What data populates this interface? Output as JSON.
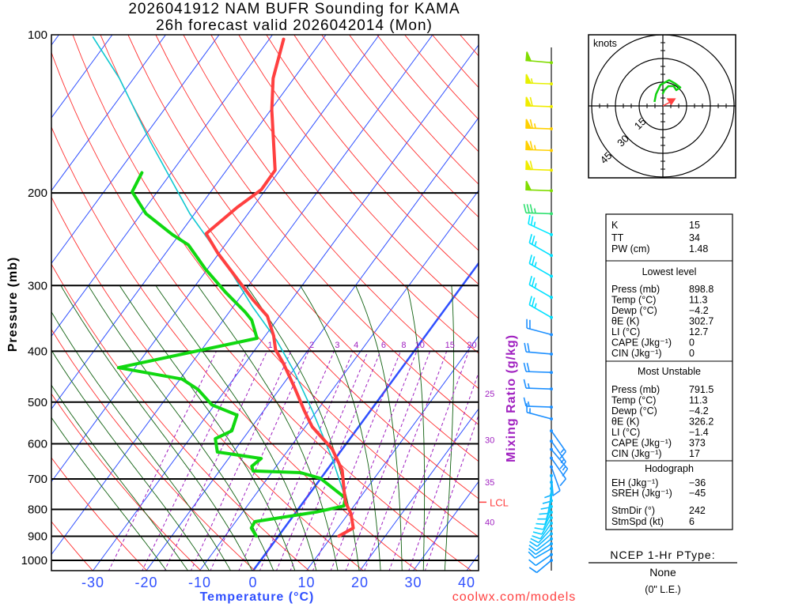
{
  "title": {
    "line1": "2026041912 NAM BUFR Sounding for KAMA",
    "line2": "26h forecast valid 2026042014 (Mon)"
  },
  "credit": "coolwx.com/models",
  "colors": {
    "temperature": "#ff4040",
    "dewpoint": "#10d810",
    "parcel": "#10c8d0",
    "isotherm": "#3050ff",
    "dry_adiabat": "#ff3030",
    "moist_adiabat": "#106010",
    "mixing_ratio": "#a020c0"
  },
  "chart_data": {
    "type": "line",
    "subtype": "skew-t log-p",
    "title": "2026041912 NAM BUFR Sounding for KAMA",
    "xlabel": "Temperature (°C)",
    "ylabel": "Pressure (mb)",
    "right_label": "Mixing Ratio (g/kg)",
    "ylim": [
      1050,
      100
    ],
    "xlim_at_surface": [
      -38,
      42
    ],
    "pressure_ticks": [
      "100",
      "200",
      "300",
      "400",
      "500",
      "600",
      "700",
      "800",
      "900",
      "1000"
    ],
    "pressure_tick_values": [
      100,
      200,
      300,
      400,
      500,
      600,
      700,
      800,
      900,
      1000
    ],
    "temp_ticks": [
      "-30",
      "-20",
      "-10",
      "0",
      "10",
      "20",
      "30",
      "40"
    ],
    "temp_tick_values": [
      -30,
      -20,
      -10,
      0,
      10,
      20,
      30,
      40
    ],
    "mixing_ratio_labels": [
      "1",
      "2",
      "3",
      "4",
      "6",
      "8",
      "10",
      "15",
      "20"
    ],
    "mixing_ratio_values": [
      1,
      2,
      3,
      4,
      6,
      8,
      10,
      15,
      20
    ],
    "moist_adiabat_labels": [
      {
        "text": "25",
        "p": 482
      },
      {
        "text": "30",
        "p": 590
      },
      {
        "text": "35",
        "p": 710
      },
      {
        "text": "40",
        "p": 846
      }
    ],
    "lcl": {
      "label": "LCL",
      "p": 775
    },
    "series": [
      {
        "name": "Temperature",
        "points": [
          [
            898.8,
            11.3
          ],
          [
            868,
            12.9
          ],
          [
            815,
            10.5
          ],
          [
            777,
            8.0
          ],
          [
            740,
            6.2
          ],
          [
            674,
            2.9
          ],
          [
            614,
            -1.9
          ],
          [
            557,
            -8.7
          ],
          [
            520,
            -12.3
          ],
          [
            468,
            -17.5
          ],
          [
            422,
            -22.8
          ],
          [
            397,
            -26.2
          ],
          [
            374,
            -28.4
          ],
          [
            343,
            -32.3
          ],
          [
            320,
            -37.1
          ],
          [
            260,
            -50.3
          ],
          [
            239,
            -55.1
          ],
          [
            213,
            -52.9
          ],
          [
            197,
            -50.8
          ],
          [
            181,
            -50.9
          ],
          [
            139,
            -59.8
          ],
          [
            121,
            -63.9
          ],
          [
            102,
            -67.3
          ]
        ]
      },
      {
        "name": "Dewpoint",
        "points": [
          [
            898.8,
            -4.2
          ],
          [
            868,
            -6.2
          ],
          [
            844,
            -6.4
          ],
          [
            809,
            3.8
          ],
          [
            788,
            8.1
          ],
          [
            761,
            7.3
          ],
          [
            698,
            -0.1
          ],
          [
            681,
            -4.6
          ],
          [
            676,
            -13.7
          ],
          [
            662,
            -14.6
          ],
          [
            640,
            -13.9
          ],
          [
            622,
            -23.0
          ],
          [
            587,
            -25.2
          ],
          [
            567,
            -23.2
          ],
          [
            529,
            -24.4
          ],
          [
            506,
            -30.5
          ],
          [
            473,
            -35.2
          ],
          [
            452,
            -39.6
          ],
          [
            430,
            -53.1
          ],
          [
            378,
            -31.2
          ],
          [
            349,
            -34.7
          ],
          [
            337,
            -37.0
          ],
          [
            309,
            -43.4
          ],
          [
            279,
            -50.4
          ],
          [
            251,
            -56.9
          ],
          [
            240,
            -61.3
          ],
          [
            219,
            -69.1
          ],
          [
            199,
            -74.7
          ],
          [
            183,
            -75.5
          ]
        ]
      },
      {
        "name": "Parcel",
        "points": [
          [
            800,
            9.5
          ],
          [
            766,
            7.6
          ],
          [
            640,
            -0.6
          ],
          [
            520,
            -10.8
          ],
          [
            437,
            -19.7
          ],
          [
            381,
            -27.3
          ],
          [
            328,
            -36.6
          ],
          [
            279,
            -45.9
          ],
          [
            219,
            -60.9
          ],
          [
            160,
            -78.1
          ],
          [
            121,
            -92.7
          ],
          [
            101,
            -103.3
          ]
        ]
      }
    ],
    "wind_barbs": [
      {
        "p": 113,
        "dir": 275,
        "spd": 50,
        "color": "#80dc00"
      },
      {
        "p": 124,
        "dir": 272,
        "spd": 55,
        "color": "#e6f000"
      },
      {
        "p": 137,
        "dir": 272,
        "spd": 60,
        "color": "#f0ec00"
      },
      {
        "p": 151,
        "dir": 272,
        "spd": 65,
        "color": "#ffd000"
      },
      {
        "p": 166,
        "dir": 272,
        "spd": 65,
        "color": "#ffd000"
      },
      {
        "p": 181,
        "dir": 272,
        "spd": 60,
        "color": "#f0ec00"
      },
      {
        "p": 198,
        "dir": 272,
        "spd": 50,
        "color": "#80dc00"
      },
      {
        "p": 219,
        "dir": 272,
        "spd": 35,
        "color": "#30e070"
      },
      {
        "p": 240,
        "dir": 295,
        "spd": 25,
        "color": "#00e8ff"
      },
      {
        "p": 263,
        "dir": 300,
        "spd": 25,
        "color": "#00e0ff"
      },
      {
        "p": 288,
        "dir": 300,
        "spd": 25,
        "color": "#00e0ff"
      },
      {
        "p": 316,
        "dir": 300,
        "spd": 25,
        "color": "#00e0ff"
      },
      {
        "p": 345,
        "dir": 300,
        "spd": 25,
        "color": "#00e0ff"
      },
      {
        "p": 372,
        "dir": 285,
        "spd": 20,
        "color": "#1e90ff"
      },
      {
        "p": 405,
        "dir": 275,
        "spd": 20,
        "color": "#1e90ff"
      },
      {
        "p": 439,
        "dir": 272,
        "spd": 20,
        "color": "#1e90ff"
      },
      {
        "p": 472,
        "dir": 272,
        "spd": 15,
        "color": "#1e90ff"
      },
      {
        "p": 511,
        "dir": 272,
        "spd": 15,
        "color": "#1e90ff"
      },
      {
        "p": 538,
        "dir": 285,
        "spd": 15,
        "color": "#1e90ff"
      },
      {
        "p": 567,
        "dir": 145,
        "spd": 15,
        "color": "#1e90ff"
      },
      {
        "p": 593,
        "dir": 145,
        "spd": 15,
        "color": "#1e90ff"
      },
      {
        "p": 615,
        "dir": 140,
        "spd": 15,
        "color": "#1e90ff"
      },
      {
        "p": 639,
        "dir": 145,
        "spd": 10,
        "color": "#1e90ff"
      },
      {
        "p": 664,
        "dir": 160,
        "spd": 10,
        "color": "#1e90ff"
      },
      {
        "p": 690,
        "dir": 175,
        "spd": 10,
        "color": "#10b0ff"
      },
      {
        "p": 710,
        "dir": 180,
        "spd": 10,
        "color": "#10b8ff"
      },
      {
        "p": 730,
        "dir": 185,
        "spd": 10,
        "color": "#10c0ff"
      },
      {
        "p": 750,
        "dir": 190,
        "spd": 10,
        "color": "#10c8ff"
      },
      {
        "p": 770,
        "dir": 195,
        "spd": 10,
        "color": "#10c8ff"
      },
      {
        "p": 790,
        "dir": 200,
        "spd": 10,
        "color": "#10d0ff"
      },
      {
        "p": 810,
        "dir": 205,
        "spd": 10,
        "color": "#10d0ff"
      },
      {
        "p": 830,
        "dir": 210,
        "spd": 10,
        "color": "#10d0ff"
      },
      {
        "p": 850,
        "dir": 215,
        "spd": 10,
        "color": "#10c8ff"
      },
      {
        "p": 870,
        "dir": 222,
        "spd": 10,
        "color": "#10c0ff"
      },
      {
        "p": 890,
        "dir": 228,
        "spd": 10,
        "color": "#10b8ff"
      },
      {
        "p": 910,
        "dir": 232,
        "spd": 10,
        "color": "#10b0ff"
      },
      {
        "p": 930,
        "dir": 236,
        "spd": 10,
        "color": "#10a8ff"
      },
      {
        "p": 950,
        "dir": 240,
        "spd": 10,
        "color": "#10a0ff"
      },
      {
        "p": 975,
        "dir": 235,
        "spd": 10,
        "color": "#1098ff"
      },
      {
        "p": 1000,
        "dir": 230,
        "spd": 10,
        "color": "#1090ff"
      }
    ],
    "hodograph": {
      "units_label": "knots",
      "ring_labels": [
        "15",
        "30",
        "45"
      ],
      "ring_values": [
        15,
        30,
        45
      ],
      "uv": [
        [
          -5.3,
          2.5
        ],
        [
          -4.3,
          7.5
        ],
        [
          -1.5,
          13.3
        ],
        [
          4,
          16.3
        ],
        [
          7.7,
          14.2
        ],
        [
          11,
          11.7
        ],
        [
          8.5,
          10
        ],
        [
          6.8,
          12.5
        ],
        [
          3.5,
          12.5
        ],
        [
          1,
          10
        ],
        [
          -0.2,
          7.5
        ]
      ],
      "storm_motion_uv": [
        5.3,
        2.8
      ]
    }
  },
  "indices": {
    "top": [
      {
        "label": "K",
        "value": "15"
      },
      {
        "label": "TT",
        "value": "34"
      },
      {
        "label": "PW (cm)",
        "value": "1.48"
      }
    ],
    "lowest": {
      "heading": "Lowest level",
      "rows": [
        {
          "label": "Press (mb)",
          "value": "898.8"
        },
        {
          "label": "Temp (°C)",
          "value": "11.3"
        },
        {
          "label": "Dewp (°C)",
          "value": "−4.2"
        },
        {
          "label": "θE (K)",
          "value": "302.7"
        },
        {
          "label": "LI (°C)",
          "value": "12.7"
        },
        {
          "label": "CAPE (Jkg⁻¹)",
          "value": "0"
        },
        {
          "label": "CIN (Jkg⁻¹)",
          "value": "0"
        }
      ]
    },
    "most_unstable": {
      "heading": "Most Unstable",
      "rows": [
        {
          "label": "Press (mb)",
          "value": "791.5"
        },
        {
          "label": "Temp (°C)",
          "value": "11.3"
        },
        {
          "label": "Dewp (°C)",
          "value": "−4.2"
        },
        {
          "label": "θE (K)",
          "value": "326.2"
        },
        {
          "label": "LI (°C)",
          "value": "−1.4"
        },
        {
          "label": "CAPE (Jkg⁻¹)",
          "value": "373"
        },
        {
          "label": "CIN (Jkg⁻¹)",
          "value": "17"
        }
      ]
    },
    "hodograph": {
      "heading": "Hodograph",
      "rows": [
        {
          "label": "EH (Jkg⁻¹)",
          "value": "−36"
        },
        {
          "label": "SREH (Jkg⁻¹)",
          "value": "−45"
        },
        {
          "label": "StmDir (°)",
          "value": "242"
        },
        {
          "label": "StmSpd (kt)",
          "value": "6"
        }
      ]
    }
  },
  "ptype": {
    "heading": "NCEP 1-Hr PType:",
    "value": "None",
    "amount": "(0\" L.E.)"
  }
}
